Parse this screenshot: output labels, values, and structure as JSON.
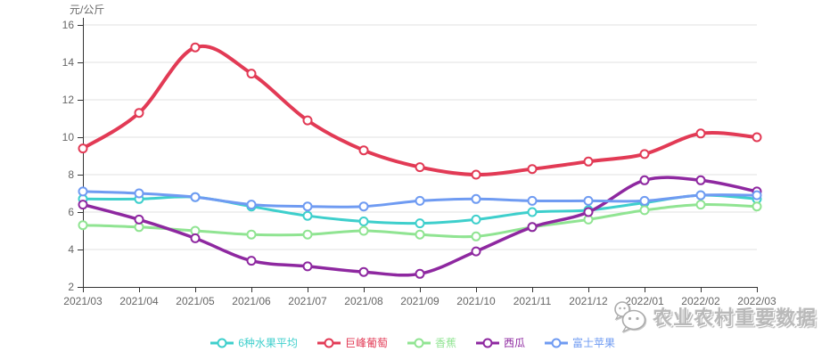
{
  "axis": {
    "label_color": "#666666",
    "line_color": "#333333",
    "grid_color": "#e0e0e0",
    "marker_fill": "#ffffff"
  },
  "watermark": {
    "text": "农业农村重要数据",
    "icon": "wechat-logo",
    "color": "#b9b9b9"
  },
  "chart_data": {
    "type": "line",
    "smooth": true,
    "title": "",
    "xlabel": "",
    "ylabel": "元/公斤",
    "ylim": [
      2,
      16
    ],
    "yticks": [
      2,
      4,
      6,
      8,
      10,
      12,
      14,
      16
    ],
    "grid": true,
    "legend_position": "bottom",
    "categories": [
      "2021/03",
      "2021/04",
      "2021/05",
      "2021/06",
      "2021/07",
      "2021/08",
      "2021/09",
      "2021/10",
      "2021/11",
      "2021/12",
      "2022/01",
      "2022/02",
      "2022/03"
    ],
    "series": [
      {
        "id": "avg-6-fruits",
        "name": "6种水果平均",
        "color": "#3ecfcc",
        "line_width": 3,
        "values": [
          6.7,
          6.7,
          6.8,
          6.3,
          5.8,
          5.5,
          5.4,
          5.6,
          6.0,
          6.1,
          6.5,
          6.9,
          6.7
        ]
      },
      {
        "id": "kyoho-grape",
        "name": "巨峰葡萄",
        "color": "#e23a55",
        "line_width": 4,
        "values": [
          9.4,
          11.3,
          14.8,
          13.4,
          10.9,
          9.3,
          8.4,
          8.0,
          8.3,
          8.7,
          9.1,
          10.2,
          10.0
        ]
      },
      {
        "id": "banana",
        "name": "香蕉",
        "color": "#90e492",
        "line_width": 3,
        "values": [
          5.3,
          5.2,
          5.0,
          4.8,
          4.8,
          5.0,
          4.8,
          4.7,
          5.2,
          5.6,
          6.1,
          6.4,
          6.3
        ]
      },
      {
        "id": "watermelon",
        "name": "西瓜",
        "color": "#8e28a0",
        "line_width": 3.5,
        "values": [
          6.4,
          5.6,
          4.6,
          3.4,
          3.1,
          2.8,
          2.7,
          3.9,
          5.2,
          6.0,
          7.7,
          7.7,
          7.1
        ]
      },
      {
        "id": "fuji-apple",
        "name": "富士苹果",
        "color": "#6f9bf2",
        "line_width": 3,
        "values": [
          7.1,
          7.0,
          6.8,
          6.4,
          6.3,
          6.3,
          6.6,
          6.7,
          6.6,
          6.6,
          6.6,
          6.9,
          6.9
        ]
      }
    ]
  }
}
